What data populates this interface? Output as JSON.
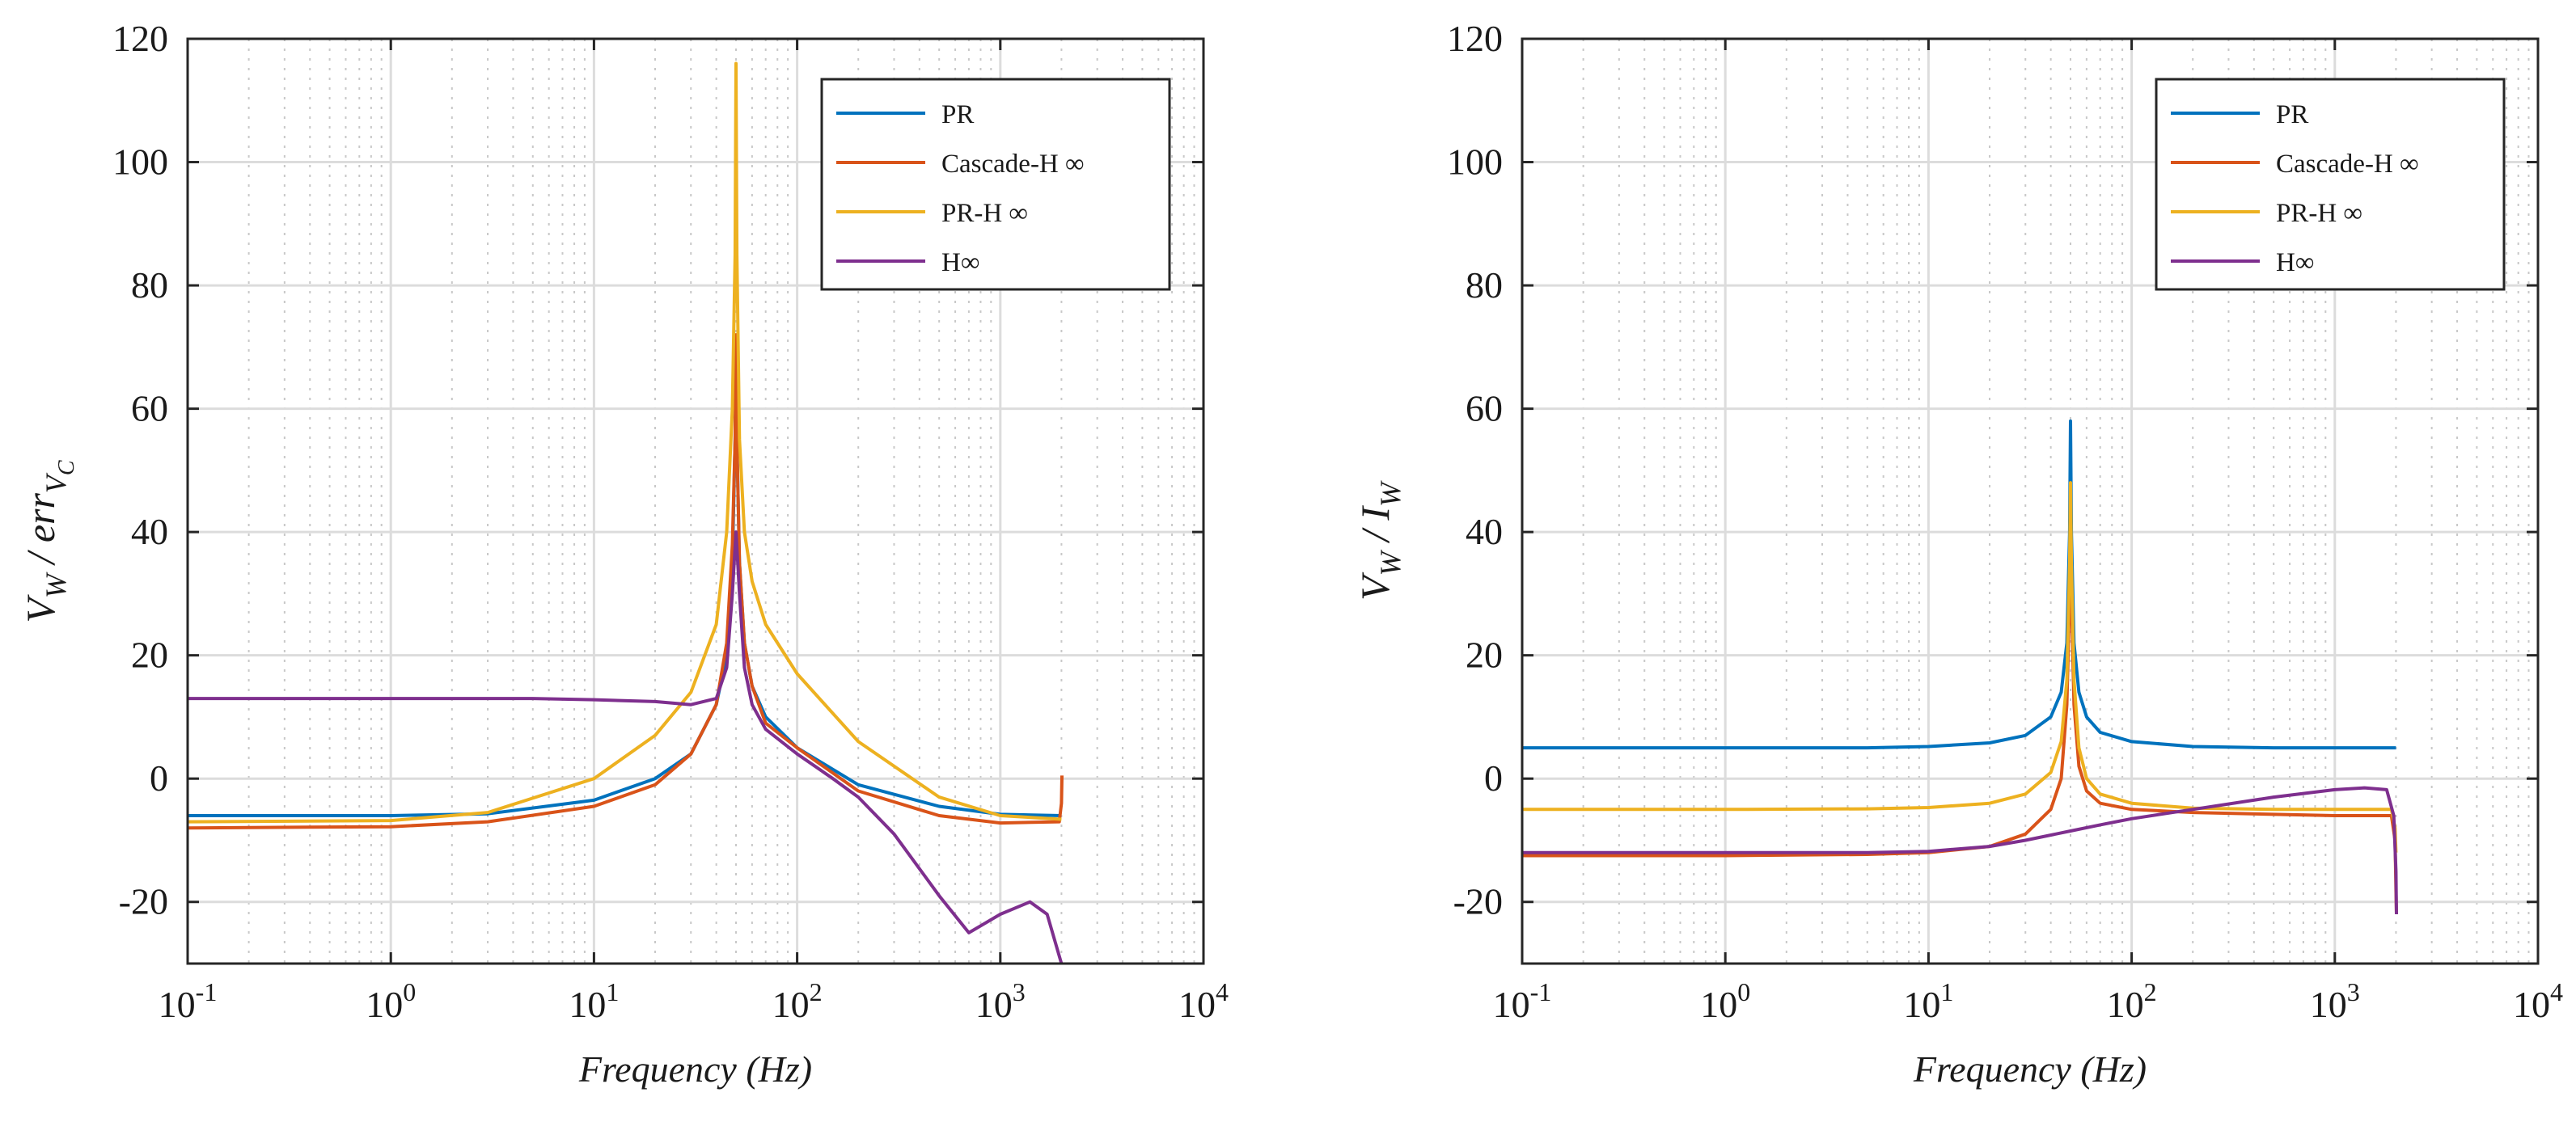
{
  "chart_data": [
    {
      "type": "line",
      "xscale": "log",
      "xlabel": "Frequency (Hz)",
      "ylabel": "V_W / err_V_C",
      "ylabel_parts": {
        "main": "V",
        "sub1": "W",
        "mid": " / err",
        "sub2": "V",
        "subsub": "C"
      },
      "xlim": [
        0.1,
        10000
      ],
      "ylim": [
        -30,
        120
      ],
      "ytick_labels": [
        "120",
        "100",
        "80",
        "60",
        "40",
        "20",
        "0",
        "-20"
      ],
      "yticks": [
        120,
        100,
        80,
        60,
        40,
        20,
        0,
        -20
      ],
      "xtick_labels": [
        {
          "base": "10",
          "exp": "-1"
        },
        {
          "base": "10",
          "exp": "0"
        },
        {
          "base": "10",
          "exp": "1"
        },
        {
          "base": "10",
          "exp": "2"
        },
        {
          "base": "10",
          "exp": "3"
        },
        {
          "base": "10",
          "exp": "4"
        }
      ],
      "grid": true,
      "legend_position": "top-right",
      "series": [
        {
          "name": "PR",
          "color": "#0072BD",
          "x": [
            0.1,
            1,
            3,
            10,
            20,
            30,
            40,
            45,
            48,
            49.5,
            50,
            50.5,
            52,
            55,
            60,
            70,
            100,
            200,
            500,
            1000,
            2000
          ],
          "y": [
            -6,
            -6,
            -5.7,
            -3.5,
            0,
            4,
            12,
            20,
            35,
            55,
            70,
            55,
            35,
            22,
            15,
            10,
            5,
            -1,
            -4.5,
            -5.8,
            -6
          ]
        },
        {
          "name": "Cascade-H ∞",
          "color": "#D95319",
          "x": [
            0.1,
            1,
            3,
            10,
            20,
            30,
            40,
            45,
            48,
            49.5,
            50,
            50.5,
            52,
            55,
            60,
            70,
            100,
            200,
            500,
            1000,
            1950,
            2000,
            2010
          ],
          "y": [
            -8,
            -7.8,
            -7,
            -4.5,
            -1,
            4,
            12,
            22,
            38,
            55,
            72,
            55,
            35,
            22,
            15,
            9,
            5,
            -2,
            -6,
            -7.2,
            -7,
            -4,
            0.5
          ]
        },
        {
          "name": "PR-H ∞",
          "color": "#EDB120",
          "x": [
            0.1,
            1,
            3,
            10,
            20,
            30,
            40,
            45,
            48,
            49.5,
            50,
            50.5,
            52,
            55,
            60,
            70,
            100,
            200,
            500,
            1000,
            2000
          ],
          "y": [
            -7,
            -6.8,
            -5.5,
            0,
            7,
            14,
            25,
            40,
            60,
            85,
            116,
            85,
            55,
            40,
            32,
            25,
            17,
            6,
            -3,
            -6,
            -6.6
          ]
        },
        {
          "name": "H∞",
          "color": "#7E2F8E",
          "x": [
            0.1,
            1,
            5,
            10,
            20,
            30,
            40,
            45,
            48,
            50,
            52,
            55,
            60,
            70,
            100,
            150,
            200,
            300,
            500,
            700,
            1000,
            1400,
            1700,
            2000
          ],
          "y": [
            13,
            13,
            13,
            12.8,
            12.5,
            12,
            13,
            18,
            30,
            40,
            30,
            18,
            12,
            8,
            4,
            0,
            -3,
            -9,
            -19,
            -25,
            -22,
            -20,
            -22,
            -30
          ]
        }
      ]
    },
    {
      "type": "line",
      "xscale": "log",
      "xlabel": "Frequency (Hz)",
      "ylabel": "V_W / I_W",
      "ylabel_parts": {
        "main": "V",
        "sub1": "W",
        "mid": " / I",
        "sub2": "W"
      },
      "xlim": [
        0.1,
        10000
      ],
      "ylim": [
        -30,
        120
      ],
      "ytick_labels": [
        "120",
        "100",
        "80",
        "60",
        "40",
        "20",
        "0",
        "-20"
      ],
      "yticks": [
        120,
        100,
        80,
        60,
        40,
        20,
        0,
        -20
      ],
      "xtick_labels": [
        {
          "base": "10",
          "exp": "-1"
        },
        {
          "base": "10",
          "exp": "0"
        },
        {
          "base": "10",
          "exp": "1"
        },
        {
          "base": "10",
          "exp": "2"
        },
        {
          "base": "10",
          "exp": "3"
        },
        {
          "base": "10",
          "exp": "4"
        }
      ],
      "grid": true,
      "legend_position": "top-right",
      "series": [
        {
          "name": "PR",
          "color": "#0072BD",
          "x": [
            0.1,
            1,
            5,
            10,
            20,
            30,
            40,
            45,
            48,
            49.5,
            50,
            50.5,
            52,
            55,
            60,
            70,
            100,
            200,
            500,
            1000,
            2000
          ],
          "y": [
            5,
            5,
            5,
            5.2,
            5.8,
            7,
            10,
            14,
            22,
            40,
            58,
            40,
            22,
            14,
            10,
            7.5,
            6,
            5.2,
            5,
            5,
            5
          ]
        },
        {
          "name": "Cascade-H ∞",
          "color": "#D95319",
          "x": [
            0.1,
            1,
            5,
            10,
            20,
            30,
            40,
            45,
            48,
            49.5,
            50,
            50.5,
            52,
            55,
            60,
            70,
            100,
            200,
            500,
            1000,
            1900,
            1980,
            2000,
            2010
          ],
          "y": [
            -12.5,
            -12.5,
            -12.3,
            -12,
            -11,
            -9,
            -5,
            0,
            12,
            30,
            42,
            30,
            12,
            2,
            -2,
            -4,
            -5,
            -5.5,
            -5.8,
            -6,
            -6,
            -10,
            -18,
            -22
          ]
        },
        {
          "name": "PR-H ∞",
          "color": "#EDB120",
          "x": [
            0.1,
            1,
            5,
            10,
            20,
            30,
            40,
            45,
            48,
            49.5,
            50,
            50.5,
            52,
            55,
            60,
            70,
            100,
            200,
            500,
            1000,
            1900,
            1980,
            2000
          ],
          "y": [
            -5,
            -5,
            -4.9,
            -4.7,
            -4,
            -2.5,
            1,
            6,
            16,
            35,
            48,
            35,
            16,
            5,
            0,
            -2.5,
            -4,
            -4.8,
            -5,
            -5,
            -5,
            -8,
            -12
          ]
        },
        {
          "name": "H∞",
          "color": "#7E2F8E",
          "x": [
            0.1,
            1,
            5,
            10,
            20,
            30,
            50,
            70,
            100,
            200,
            500,
            1000,
            1400,
            1800,
            1950,
            2000,
            2010
          ],
          "y": [
            -12,
            -12,
            -12,
            -11.8,
            -11,
            -10,
            -8.5,
            -7.5,
            -6.5,
            -5,
            -3,
            -1.8,
            -1.5,
            -1.8,
            -6,
            -15,
            -22
          ]
        }
      ]
    }
  ]
}
